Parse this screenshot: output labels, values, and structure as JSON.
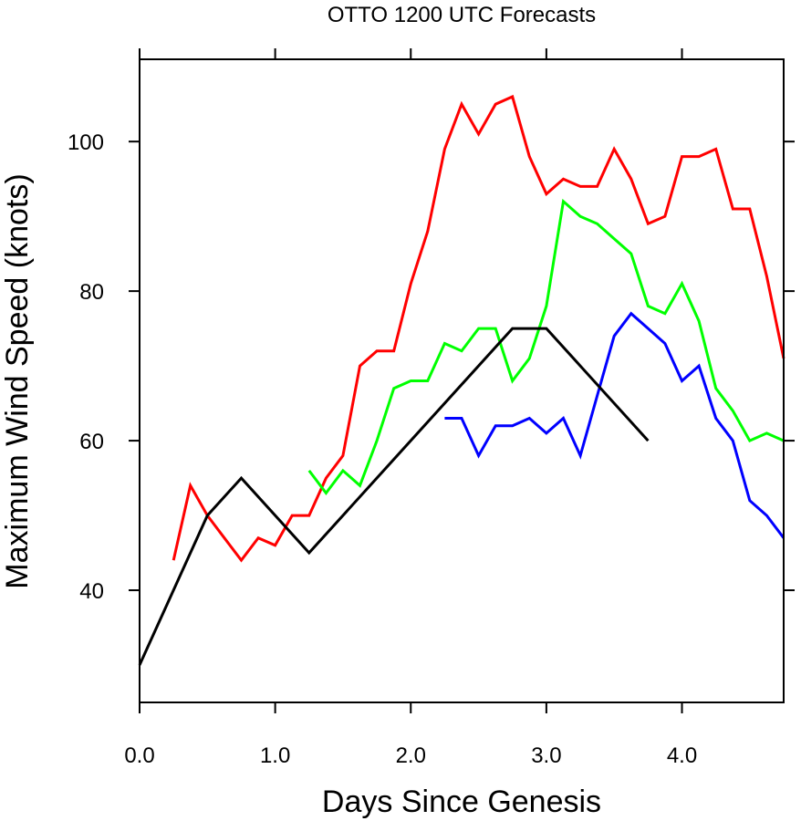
{
  "chart_data": {
    "type": "line",
    "title": "OTTO 1200 UTC Forecasts",
    "xlabel": "Days Since Genesis",
    "ylabel": "Maximum Wind Speed (knots)",
    "xlim": [
      0,
      4.75
    ],
    "ylim": [
      25,
      111
    ],
    "xticks": [
      0,
      1,
      2,
      3,
      4
    ],
    "xtick_labels": [
      "0.0",
      "1.0",
      "2.0",
      "3.0",
      "4.0"
    ],
    "yticks": [
      40,
      60,
      80,
      100
    ],
    "ytick_labels": [
      "40",
      "60",
      "80",
      "100"
    ],
    "grid": false,
    "legend": "none",
    "series": [
      {
        "color": "#ff0000",
        "x": [
          0.25,
          0.375,
          0.5,
          0.625,
          0.75,
          0.875,
          1.0,
          1.125,
          1.25,
          1.375,
          1.5,
          1.625,
          1.75,
          1.875,
          2.0,
          2.125,
          2.25,
          2.375,
          2.5,
          2.625,
          2.75,
          2.875,
          3.0,
          3.125,
          3.25,
          3.375,
          3.5,
          3.625,
          3.75,
          3.875,
          4.0,
          4.125,
          4.25,
          4.375,
          4.5,
          4.625,
          4.75
        ],
        "y": [
          44,
          54,
          50,
          47,
          44,
          47,
          46,
          50,
          50,
          55,
          58,
          70,
          72,
          72,
          81,
          88,
          99,
          105,
          101,
          105,
          106,
          98,
          93,
          95,
          94,
          94,
          99,
          95,
          89,
          90,
          98,
          98,
          99,
          91,
          91,
          82,
          71
        ]
      },
      {
        "color": "#00ff00",
        "x": [
          1.25,
          1.375,
          1.5,
          1.625,
          1.75,
          1.875,
          2.0,
          2.125,
          2.25,
          2.375,
          2.5,
          2.625,
          2.75,
          2.875,
          3.0,
          3.125,
          3.25,
          3.375,
          3.5,
          3.625,
          3.75,
          3.875,
          4.0,
          4.125,
          4.25,
          4.375,
          4.5,
          4.625,
          4.75
        ],
        "y": [
          56,
          53,
          56,
          54,
          60,
          67,
          68,
          68,
          73,
          72,
          75,
          75,
          68,
          71,
          78,
          92,
          90,
          89,
          87,
          85,
          78,
          77,
          81,
          76,
          67,
          64,
          60,
          61,
          60
        ]
      },
      {
        "color": "#0000ff",
        "x": [
          2.25,
          2.375,
          2.5,
          2.625,
          2.75,
          2.875,
          3.0,
          3.125,
          3.25,
          3.375,
          3.5,
          3.625,
          3.75,
          3.875,
          4.0,
          4.125,
          4.25,
          4.375,
          4.5,
          4.625,
          4.75
        ],
        "y": [
          63,
          63,
          58,
          62,
          62,
          63,
          61,
          63,
          58,
          66,
          74,
          77,
          75,
          73,
          68,
          70,
          63,
          60,
          52,
          50,
          47
        ]
      },
      {
        "color": "#000000",
        "x": [
          0,
          0.5,
          0.75,
          1.25,
          2.75,
          3.0,
          3.75
        ],
        "y": [
          30,
          50,
          55,
          45,
          75,
          75,
          60
        ]
      }
    ]
  }
}
